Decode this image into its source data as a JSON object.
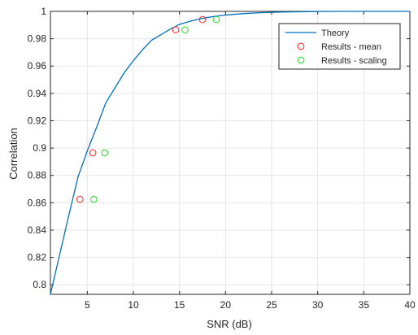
{
  "chart_data": {
    "type": "line",
    "title": "",
    "xlabel": "SNR (dB)",
    "ylabel": "Correlation",
    "xlim": [
      1,
      40
    ],
    "ylim": [
      0.793,
      1.0
    ],
    "xticks": [
      5,
      10,
      15,
      20,
      25,
      30,
      35,
      40
    ],
    "yticks": [
      0.8,
      0.82,
      0.84,
      0.86,
      0.88,
      0.9,
      0.92,
      0.94,
      0.96,
      0.98,
      1
    ],
    "ytick_labels": [
      "0.8",
      "0.82",
      "0.84",
      "0.86",
      "0.88",
      "0.9",
      "0.92",
      "0.94",
      "0.96",
      "0.98",
      "1"
    ],
    "grid": true,
    "legend_position": "top-right",
    "series": [
      {
        "name": "Theory",
        "kind": "line",
        "color": "#0072bd",
        "x": [
          1,
          2,
          3,
          4,
          5,
          6,
          7,
          8,
          9,
          10,
          11,
          12,
          13,
          14,
          15,
          16,
          17,
          18,
          19,
          20,
          22,
          24,
          26,
          28,
          30,
          32,
          34,
          36,
          38,
          40
        ],
        "y": [
          0.793,
          0.822,
          0.851,
          0.879,
          0.898,
          0.915,
          0.933,
          0.944,
          0.955,
          0.964,
          0.972,
          0.979,
          0.983,
          0.987,
          0.9905,
          0.9925,
          0.9942,
          0.9955,
          0.9965,
          0.9973,
          0.9984,
          0.9991,
          0.9995,
          0.9997,
          0.9999,
          1.0,
          1.0,
          1.0,
          1.0,
          1.0
        ]
      },
      {
        "name": "Results - mean",
        "kind": "scatter",
        "color": "#ff3333",
        "x": [
          4.2,
          5.6,
          14.6,
          17.5
        ],
        "y": [
          0.8625,
          0.8965,
          0.9865,
          0.994
        ]
      },
      {
        "name": "Results - scaling",
        "kind": "scatter",
        "color": "#33dd33",
        "x": [
          5.7,
          6.9,
          15.6,
          19.0
        ],
        "y": [
          0.8625,
          0.8965,
          0.9865,
          0.994
        ]
      }
    ]
  }
}
